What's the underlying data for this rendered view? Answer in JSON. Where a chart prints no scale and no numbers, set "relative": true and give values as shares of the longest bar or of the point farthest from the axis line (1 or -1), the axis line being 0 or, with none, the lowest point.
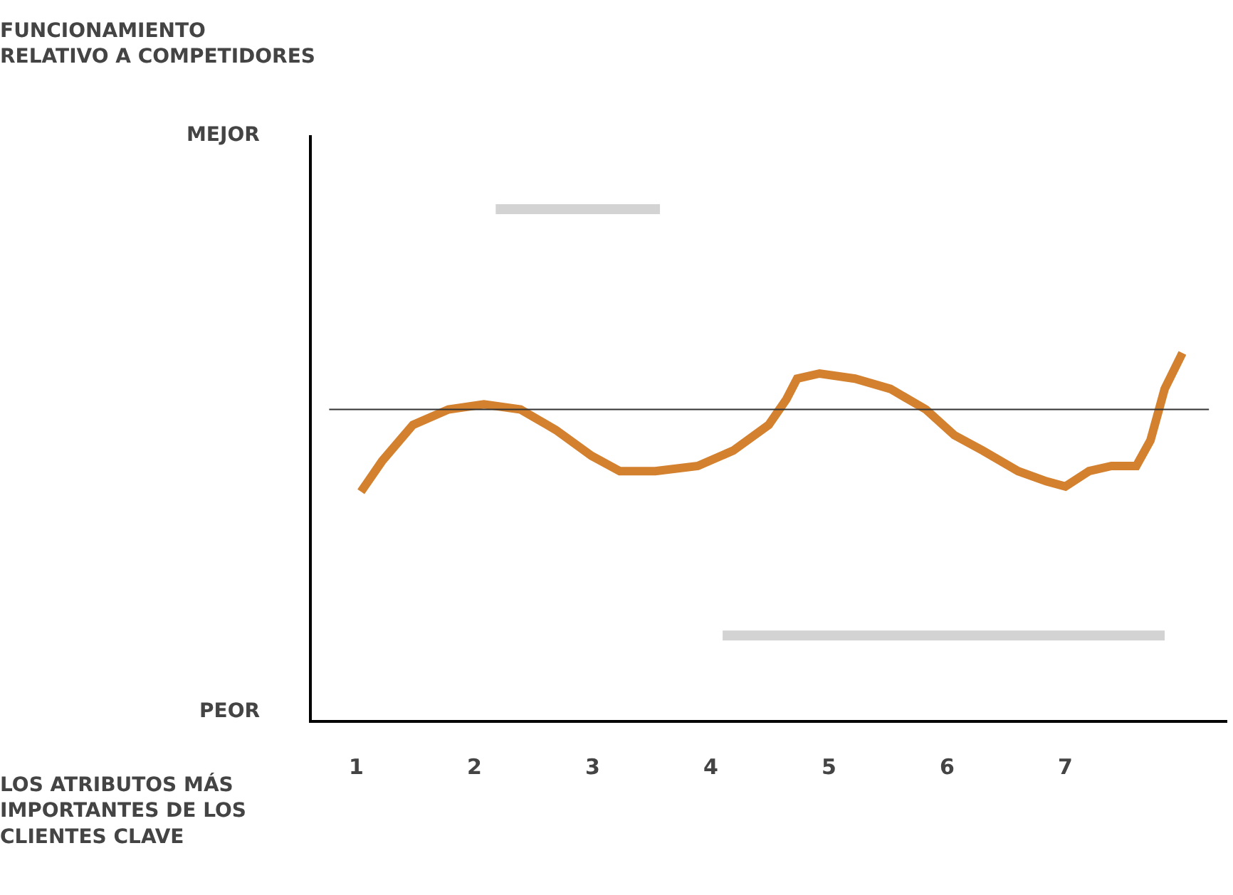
{
  "chart_data": {
    "type": "line",
    "relative": true,
    "xlabel": "LOS ATRIBUTOS MÁS IMPORTANTES DE LOS CLIENTES CLAVE",
    "annotations": [
      "FUNCIONAMIENTO RELATIVO A COMPETIDORES",
      "MEJOR",
      "PEOR"
    ],
    "xlim": [
      0.6,
      8.37
    ],
    "xticks": [
      1,
      2,
      3,
      4,
      5,
      6,
      7
    ],
    "grid": false,
    "marker": "none",
    "line_style": "solid",
    "ref_lines": [
      {
        "axis": "y",
        "value": 0.61,
        "color": "#333333"
      }
    ],
    "series": [
      {
        "color": "#d4812f",
        "x": [
          1.04,
          1.22,
          1.48,
          1.78,
          2.08,
          2.39,
          2.69,
          2.99,
          3.23,
          3.53,
          3.89,
          4.19,
          4.49,
          4.64,
          4.73,
          4.92,
          5.22,
          5.52,
          5.82,
          6.06,
          6.3,
          6.6,
          6.84,
          7.0,
          7.2,
          7.39,
          7.6,
          7.72,
          7.84,
          7.99
        ],
        "values": [
          0.45,
          0.51,
          0.58,
          0.61,
          0.62,
          0.61,
          0.57,
          0.52,
          0.49,
          0.49,
          0.5,
          0.53,
          0.58,
          0.63,
          0.67,
          0.68,
          0.67,
          0.65,
          0.61,
          0.56,
          0.53,
          0.49,
          0.47,
          0.46,
          0.49,
          0.5,
          0.5,
          0.55,
          0.65,
          0.72
        ]
      },
      {
        "color": "#d3d3d3",
        "x": [
          2.18,
          3.57
        ],
        "values": [
          1,
          1
        ]
      },
      {
        "color": "#d3d3d3",
        "x": [
          4.1,
          7.84
        ],
        "values": [
          0.17,
          0.17
        ]
      }
    ]
  }
}
